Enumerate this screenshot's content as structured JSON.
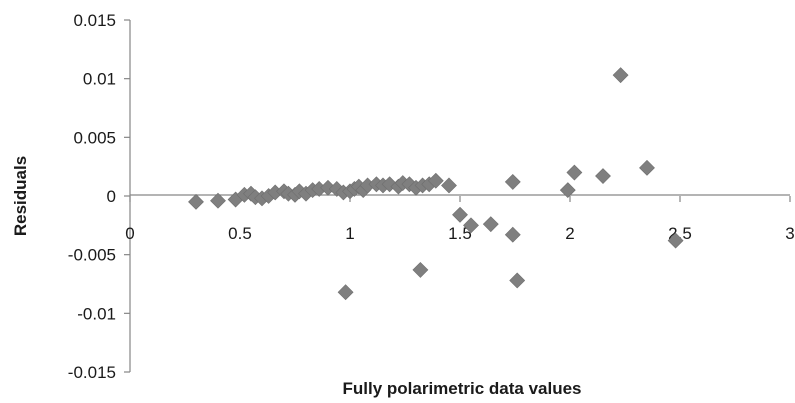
{
  "chart_data": {
    "type": "scatter",
    "title": "",
    "xlabel": "Fully polarimetric data values",
    "ylabel": "Residuals",
    "xlim": [
      0,
      3
    ],
    "ylim": [
      -0.015,
      0.015
    ],
    "xticks": [
      "0",
      "0.5",
      "1",
      "1.5",
      "2",
      "2.5",
      "3"
    ],
    "yticks": [
      "0.015",
      "0.01",
      "0.005",
      "0",
      "-0.005",
      "-0.01",
      "-0.015"
    ],
    "grid": false,
    "legend": "none",
    "marker": "diamond",
    "marker_color": "#7f7f7f",
    "points": [
      [
        0.3,
        -0.0005
      ],
      [
        0.4,
        -0.0004
      ],
      [
        0.48,
        -0.0003
      ],
      [
        0.52,
        0.0001
      ],
      [
        0.55,
        0.0002
      ],
      [
        0.57,
        -0.0001
      ],
      [
        0.6,
        -0.0002
      ],
      [
        0.63,
        0.0
      ],
      [
        0.66,
        0.0003
      ],
      [
        0.7,
        0.0004
      ],
      [
        0.72,
        0.0002
      ],
      [
        0.75,
        0.0001
      ],
      [
        0.77,
        0.0004
      ],
      [
        0.8,
        0.0002
      ],
      [
        0.83,
        0.0005
      ],
      [
        0.86,
        0.0006
      ],
      [
        0.9,
        0.0007
      ],
      [
        0.94,
        0.0006
      ],
      [
        0.97,
        0.0003
      ],
      [
        1.0,
        0.0004
      ],
      [
        1.02,
        0.0006
      ],
      [
        1.04,
        0.0008
      ],
      [
        1.06,
        0.0005
      ],
      [
        1.08,
        0.0009
      ],
      [
        1.12,
        0.001
      ],
      [
        1.15,
        0.0009
      ],
      [
        1.18,
        0.001
      ],
      [
        1.22,
        0.0008
      ],
      [
        1.24,
        0.0011
      ],
      [
        1.27,
        0.001
      ],
      [
        1.3,
        0.0007
      ],
      [
        1.33,
        0.0009
      ],
      [
        1.36,
        0.001
      ],
      [
        1.39,
        0.0013
      ],
      [
        1.45,
        0.0009
      ],
      [
        1.5,
        -0.0016
      ],
      [
        1.55,
        -0.0025
      ],
      [
        1.64,
        -0.0024
      ],
      [
        1.74,
        0.0012
      ],
      [
        1.74,
        -0.0033
      ],
      [
        1.76,
        -0.0072
      ],
      [
        1.99,
        0.0005
      ],
      [
        2.02,
        0.002
      ],
      [
        2.15,
        0.0017
      ],
      [
        2.23,
        0.0103
      ],
      [
        2.35,
        0.0024
      ],
      [
        2.48,
        -0.0038
      ],
      [
        0.98,
        -0.0082
      ],
      [
        1.32,
        -0.0063
      ]
    ]
  }
}
